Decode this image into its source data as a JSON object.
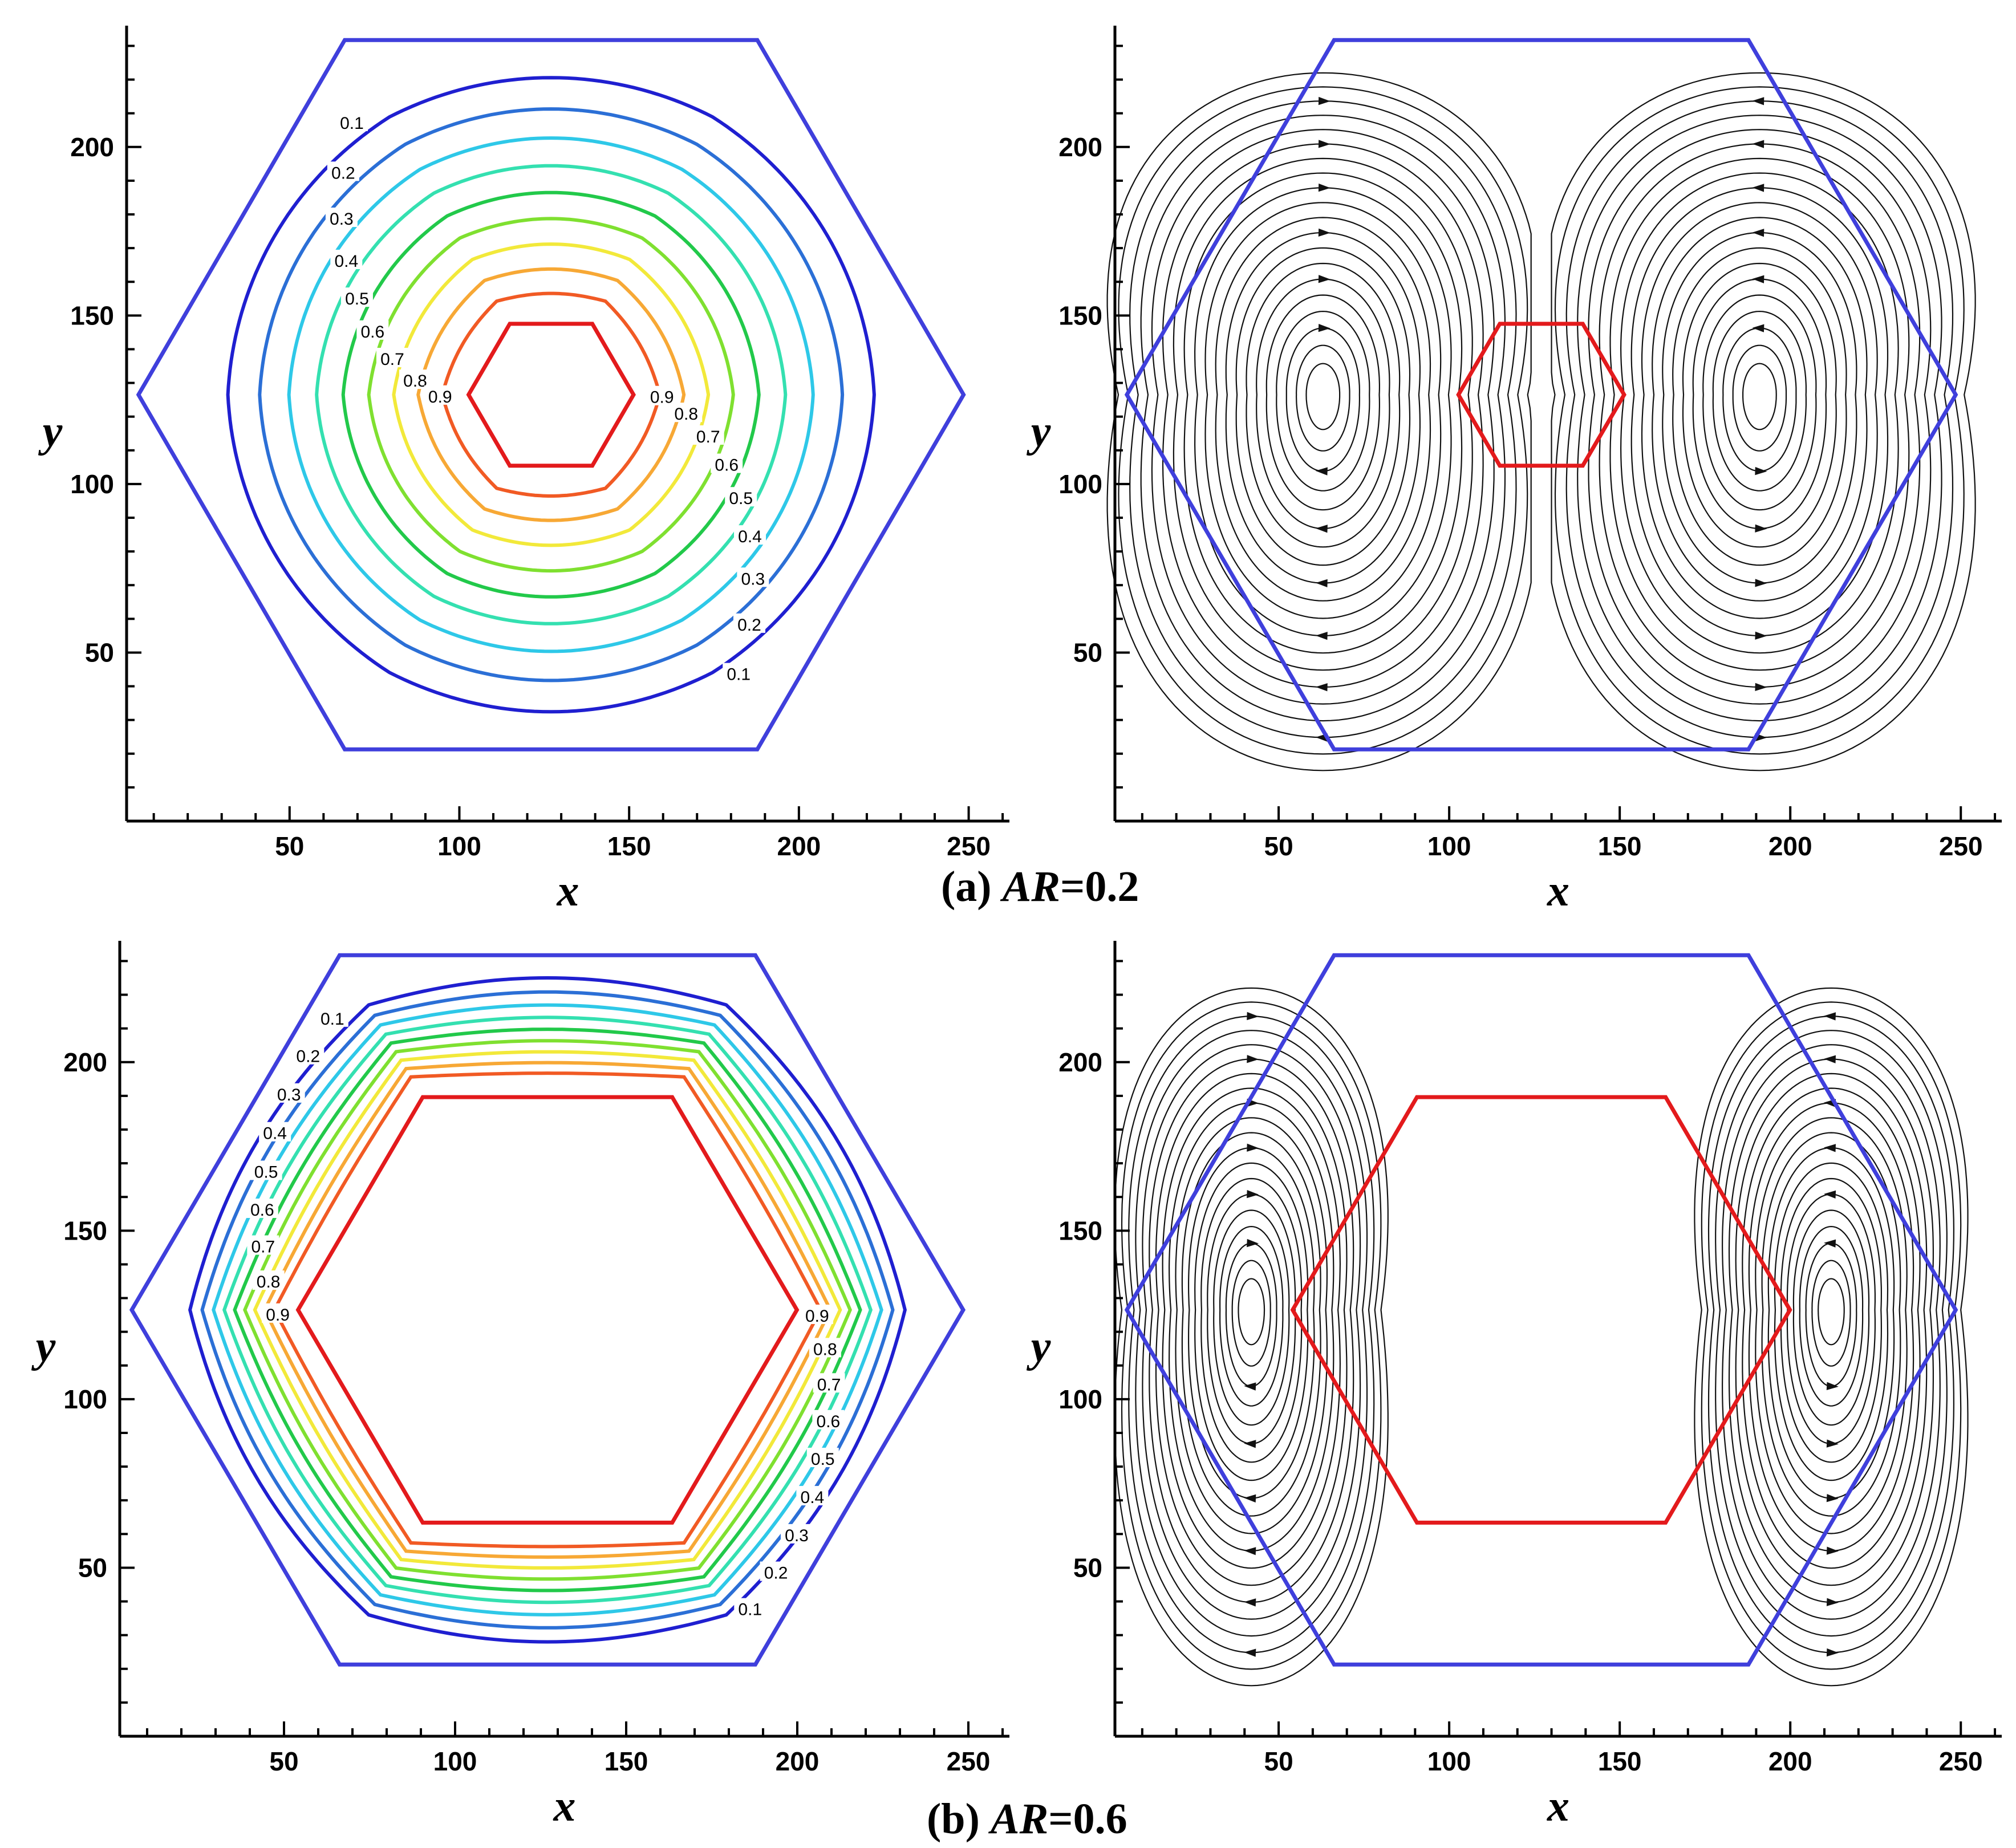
{
  "figure": {
    "panels": [
      {
        "id": "a-contour",
        "kind": "contour",
        "inner_size": 0.2,
        "xlabel": "x",
        "ylabel": "y",
        "xticks": [
          "50",
          "100",
          "150",
          "200",
          "250"
        ],
        "yticks": [
          "50",
          "100",
          "150",
          "200"
        ],
        "contour_levels": [
          "0.1",
          "0.2",
          "0.3",
          "0.4",
          "0.5",
          "0.6",
          "0.7",
          "0.8",
          "0.9"
        ]
      },
      {
        "id": "a-stream",
        "kind": "streamlines",
        "inner_size": 0.2,
        "xlabel": "x",
        "ylabel": "y",
        "xticks": [
          "50",
          "100",
          "150",
          "200",
          "250"
        ],
        "yticks": [
          "50",
          "100",
          "150",
          "200"
        ]
      },
      {
        "id": "b-contour",
        "kind": "contour",
        "inner_size": 0.6,
        "xlabel": "x",
        "ylabel": "y",
        "xticks": [
          "50",
          "100",
          "150",
          "200",
          "250"
        ],
        "yticks": [
          "50",
          "100",
          "150",
          "200"
        ],
        "contour_levels": [
          "0.1",
          "0.2",
          "0.3",
          "0.4",
          "0.5",
          "0.6",
          "0.7",
          "0.8",
          "0.9"
        ]
      },
      {
        "id": "b-stream",
        "kind": "streamlines",
        "inner_size": 0.6,
        "xlabel": "x",
        "ylabel": "y",
        "xticks": [
          "50",
          "100",
          "150",
          "200",
          "250"
        ],
        "yticks": [
          "50",
          "100",
          "150",
          "200"
        ]
      }
    ],
    "captions": {
      "a": {
        "prefix": "(a)",
        "var": "AR",
        "value": "=0.2"
      },
      "b": {
        "prefix": "(b)",
        "var": "AR",
        "value": "=0.6"
      }
    },
    "colors": {
      "outer_boundary": "#3f3fdc",
      "inner_boundary": "#e31a1c",
      "levels": [
        "#1f1fd0",
        "#2b6fd6",
        "#2ec8e8",
        "#34e0b0",
        "#22c94a",
        "#7fe030",
        "#f2e93a",
        "#f7a835",
        "#f15a24"
      ]
    }
  }
}
